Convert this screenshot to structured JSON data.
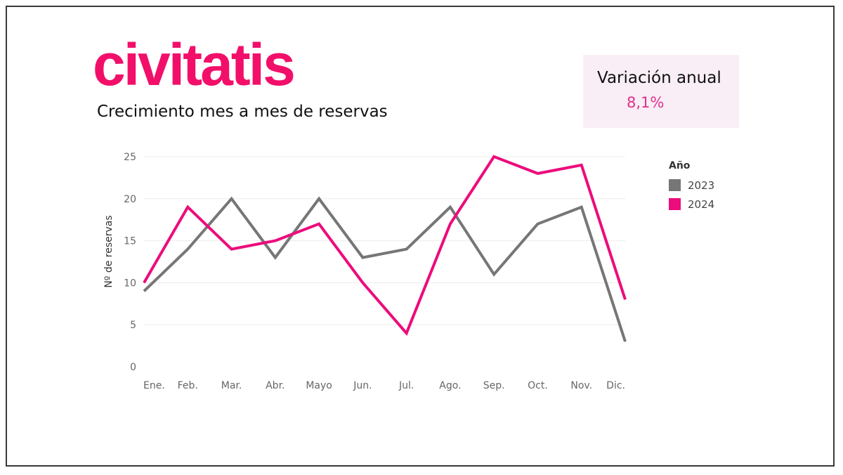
{
  "logo_text": "civitatis",
  "subtitle": "Crecimiento mes a mes de reservas",
  "kpi": {
    "title": "Variación anual",
    "value": "8,1%"
  },
  "legend": {
    "title": "Año"
  },
  "colors": {
    "brand": "#f20f6a",
    "series_2023": "#767676",
    "series_2024": "#ec0c7c",
    "kpi_bg": "#f9eef6"
  },
  "chart_data": {
    "type": "line",
    "title": "",
    "xlabel": "",
    "ylabel": "Nº de reservas",
    "categories": [
      "Ene.",
      "Feb.",
      "Mar.",
      "Abr.",
      "Mayo",
      "Jun.",
      "Jul.",
      "Ago.",
      "Sep.",
      "Oct.",
      "Nov.",
      "Dic."
    ],
    "yticks": [
      0,
      5,
      10,
      15,
      20,
      25
    ],
    "ylim": [
      0,
      26.5
    ],
    "grid": true,
    "legend_position": "right",
    "series": [
      {
        "name": "2023",
        "color": "#767676",
        "values": [
          9,
          14,
          20,
          13,
          20,
          13,
          14,
          19,
          11,
          17,
          19,
          3
        ]
      },
      {
        "name": "2024",
        "color": "#ec0c7c",
        "values": [
          10,
          19,
          14,
          15,
          17,
          10,
          4,
          17,
          25,
          23,
          24,
          8
        ]
      }
    ]
  }
}
